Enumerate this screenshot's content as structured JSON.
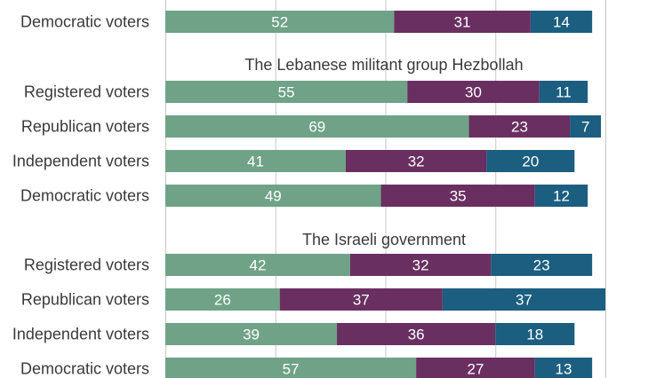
{
  "chart_data": {
    "type": "bar",
    "orientation": "horizontal",
    "stacked": true,
    "xlim": [
      0,
      100
    ],
    "grid": true,
    "colors": [
      "#6fa287",
      "#6a2f61",
      "#1b5e80"
    ],
    "groups": [
      {
        "title": "",
        "rows": [
          {
            "label": "Democratic voters",
            "values": [
              52,
              31,
              14
            ]
          }
        ]
      },
      {
        "title": "The Lebanese militant group Hezbollah",
        "rows": [
          {
            "label": "Registered voters",
            "values": [
              55,
              30,
              11
            ]
          },
          {
            "label": "Republican voters",
            "values": [
              69,
              23,
              7
            ]
          },
          {
            "label": "Independent voters",
            "values": [
              41,
              32,
              20
            ]
          },
          {
            "label": "Democratic voters",
            "values": [
              49,
              35,
              12
            ]
          }
        ]
      },
      {
        "title": "The Israeli government",
        "rows": [
          {
            "label": "Registered voters",
            "values": [
              42,
              32,
              23
            ]
          },
          {
            "label": "Republican voters",
            "values": [
              26,
              37,
              37
            ]
          },
          {
            "label": "Independent voters",
            "values": [
              39,
              36,
              18
            ]
          },
          {
            "label": "Democratic voters",
            "values": [
              57,
              27,
              13
            ]
          }
        ]
      }
    ]
  }
}
